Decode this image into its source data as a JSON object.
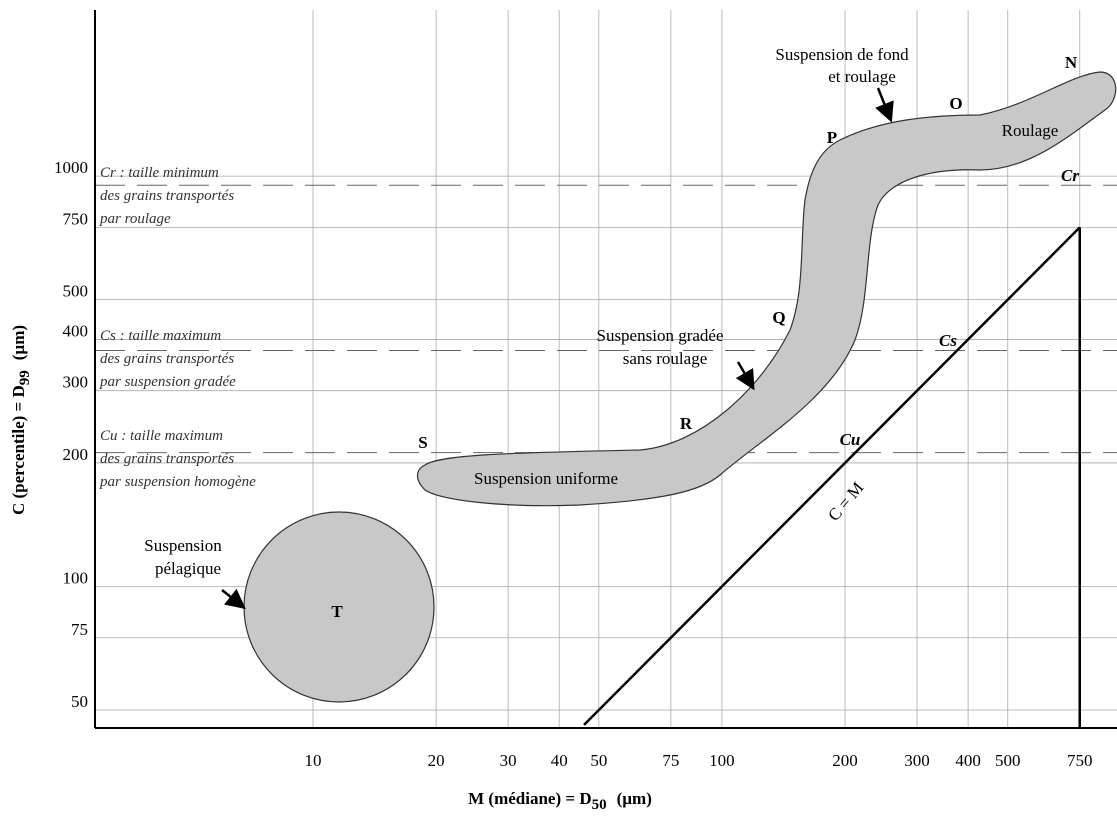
{
  "chart_data": {
    "type": "line",
    "x_label": {
      "text": "M (médiane) = D",
      "sub": "50",
      "unit": "(µm)"
    },
    "y_label": {
      "text": "C (percentile) = D",
      "sub": "99",
      "unit": "(µm)"
    },
    "log_x": true,
    "log_y": true,
    "grid": true,
    "xlim": [
      2.93,
      925
    ],
    "ylim": [
      45.2,
      2540
    ],
    "xticks": [
      10,
      20,
      30,
      40,
      50,
      75,
      100,
      200,
      300,
      400,
      500,
      750
    ],
    "yticks": [
      50,
      75,
      100,
      200,
      300,
      400,
      500,
      750,
      1000
    ],
    "series": [
      {
        "name": "C = M",
        "color": "#000000",
        "x": [
          46,
          750
        ],
        "values": [
          46,
          750
        ]
      }
    ],
    "reference_lines": [
      {
        "name": "Cr",
        "value": 950
      },
      {
        "name": "Cs",
        "value": 376
      },
      {
        "name": "Cu",
        "value": 212
      }
    ],
    "notes": [
      [
        "Cr : taille minimum",
        "des grains transportés",
        "par roulage"
      ],
      [
        "Cs : taille maximum",
        "des grains transportés",
        "par suspension gradée"
      ],
      [
        "Cu : taille maximum",
        "des grains transportés",
        "par suspension homogène"
      ]
    ],
    "points": [
      "N",
      "O",
      "P",
      "Q",
      "R",
      "S",
      "T"
    ],
    "annotations": [
      "Suspension de fond",
      "et roulage",
      "Roulage",
      "Suspension gradée",
      "sans roulage",
      "Suspension uniforme",
      "Suspension",
      "pélagique"
    ]
  }
}
